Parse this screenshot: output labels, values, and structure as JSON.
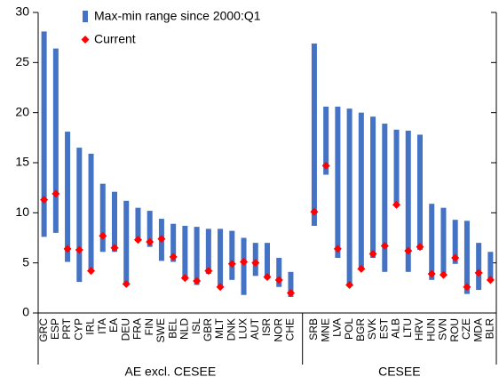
{
  "chart_data": {
    "type": "range",
    "ylim": [
      0,
      30
    ],
    "yticks": [
      0,
      5,
      10,
      15,
      20,
      25,
      30
    ],
    "series": [
      {
        "name": "Max-min range since 2000:Q1",
        "color": "#4472c4"
      },
      {
        "name": "Current",
        "color": "#ff0000"
      }
    ],
    "groups": [
      {
        "label": "AE excl. CESEE",
        "categories": [
          "GRC",
          "ESP",
          "PRT",
          "CYP",
          "IRL",
          "ITA",
          "EA",
          "DEU",
          "FRA",
          "FIN",
          "SWE",
          "BEL",
          "NLD",
          "ISL",
          "GBR",
          "MLT",
          "DNK",
          "LUX",
          "AUT",
          "ISR",
          "NOR",
          "CHE"
        ],
        "low": [
          7.6,
          8.0,
          5.1,
          3.1,
          4.2,
          6.1,
          6.1,
          2.9,
          7.3,
          6.6,
          5.2,
          5.1,
          3.3,
          2.8,
          3.9,
          2.6,
          3.3,
          1.8,
          3.7,
          3.4,
          2.6,
          1.6
        ],
        "high": [
          28.1,
          26.4,
          18.1,
          16.5,
          15.9,
          12.9,
          12.1,
          11.2,
          10.5,
          10.2,
          9.4,
          8.9,
          8.7,
          8.6,
          8.4,
          8.4,
          8.2,
          7.5,
          7.0,
          7.0,
          5.5,
          4.1
        ],
        "current": [
          11.3,
          11.9,
          6.4,
          6.3,
          4.2,
          7.7,
          6.5,
          2.9,
          7.3,
          7.1,
          7.4,
          5.6,
          3.5,
          3.2,
          4.2,
          2.6,
          4.9,
          5.1,
          5.0,
          3.6,
          3.3,
          2.0
        ]
      },
      {
        "label": "CESEE",
        "categories": [
          "SRB",
          "MNE",
          "LVA",
          "POL",
          "BGR",
          "SVK",
          "EST",
          "ALB",
          "LTU",
          "HRV",
          "HUN",
          "SVN",
          "ROU",
          "CZE",
          "MDA",
          "BLR"
        ],
        "low": [
          8.7,
          13.8,
          5.5,
          2.8,
          4.3,
          5.5,
          4.1,
          10.8,
          4.1,
          6.3,
          3.3,
          3.7,
          4.9,
          1.9,
          2.3,
          3.2
        ],
        "high": [
          26.9,
          20.6,
          20.6,
          20.4,
          20.0,
          19.6,
          18.9,
          18.3,
          18.2,
          17.8,
          10.9,
          10.5,
          9.3,
          9.2,
          7.0,
          6.1
        ],
        "current": [
          10.1,
          14.7,
          6.4,
          2.8,
          4.4,
          5.9,
          6.7,
          10.8,
          6.2,
          6.6,
          3.9,
          3.8,
          5.5,
          2.6,
          4.0,
          3.3
        ]
      }
    ]
  }
}
